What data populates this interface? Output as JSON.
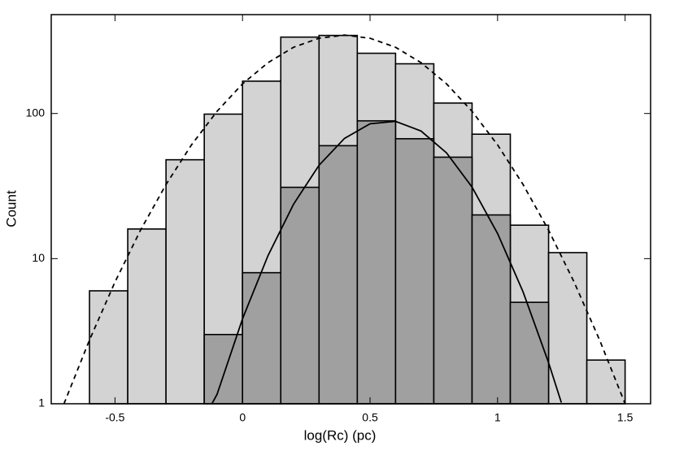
{
  "chart_data": {
    "type": "histogram",
    "x_label": "log(Rc) (pc)",
    "y_label": "Count",
    "bins": [
      -0.6,
      -0.45,
      -0.3,
      -0.15,
      0,
      0.15,
      0.3,
      0.45,
      0.6,
      0.75,
      0.9,
      1.05,
      1.2,
      1.35,
      1.5
    ],
    "series": [
      {
        "color": "#d3d3d3",
        "values": [
          6,
          16,
          48,
          99,
          167,
          336,
          345,
          260,
          220,
          118,
          72,
          17,
          11,
          2
        ]
      },
      {
        "color": "#a0a0a0",
        "values": [
          null,
          null,
          null,
          3,
          8,
          31,
          60,
          89,
          67,
          50,
          20,
          5,
          null,
          null
        ]
      }
    ],
    "lines": [
      {
        "color": "#000000",
        "dashed": true,
        "x": [
          -0.7,
          -0.6,
          -0.5,
          -0.4,
          -0.3,
          -0.2,
          -0.1,
          0,
          0.1,
          0.2,
          0.3,
          0.4,
          0.5,
          0.6,
          0.7,
          0.8,
          0.9,
          1.0,
          1.1,
          1.2,
          1.3,
          1.4,
          1.5
        ],
        "values": [
          1.0,
          2.75,
          6.9,
          15.7,
          32.4,
          60.8,
          103.5,
          160,
          224,
          286,
          330,
          347,
          330,
          286,
          224,
          160,
          103.5,
          60.8,
          32.4,
          15.7,
          6.9,
          2.75,
          1.0
        ]
      },
      {
        "color": "#000000",
        "dashed": false,
        "x": [
          -0.12,
          -0.1,
          0,
          0.1,
          0.2,
          0.3,
          0.4,
          0.5,
          0.6,
          0.7,
          0.8,
          0.9,
          1.0,
          1.1,
          1.2,
          1.25
        ],
        "values": [
          1.0,
          1.16,
          3.85,
          10.5,
          23.7,
          44.0,
          67.4,
          84.9,
          88.3,
          75.7,
          53.5,
          31.1,
          14.9,
          5.9,
          1.92,
          1.02
        ]
      }
    ],
    "xlim": [
      -0.75,
      1.6
    ],
    "xticks": [
      -0.5,
      0,
      0.5,
      1,
      1.5
    ],
    "ylim": [
      1,
      480
    ],
    "yticks": [
      1,
      10,
      100
    ],
    "log_y": true,
    "grid": false
  }
}
